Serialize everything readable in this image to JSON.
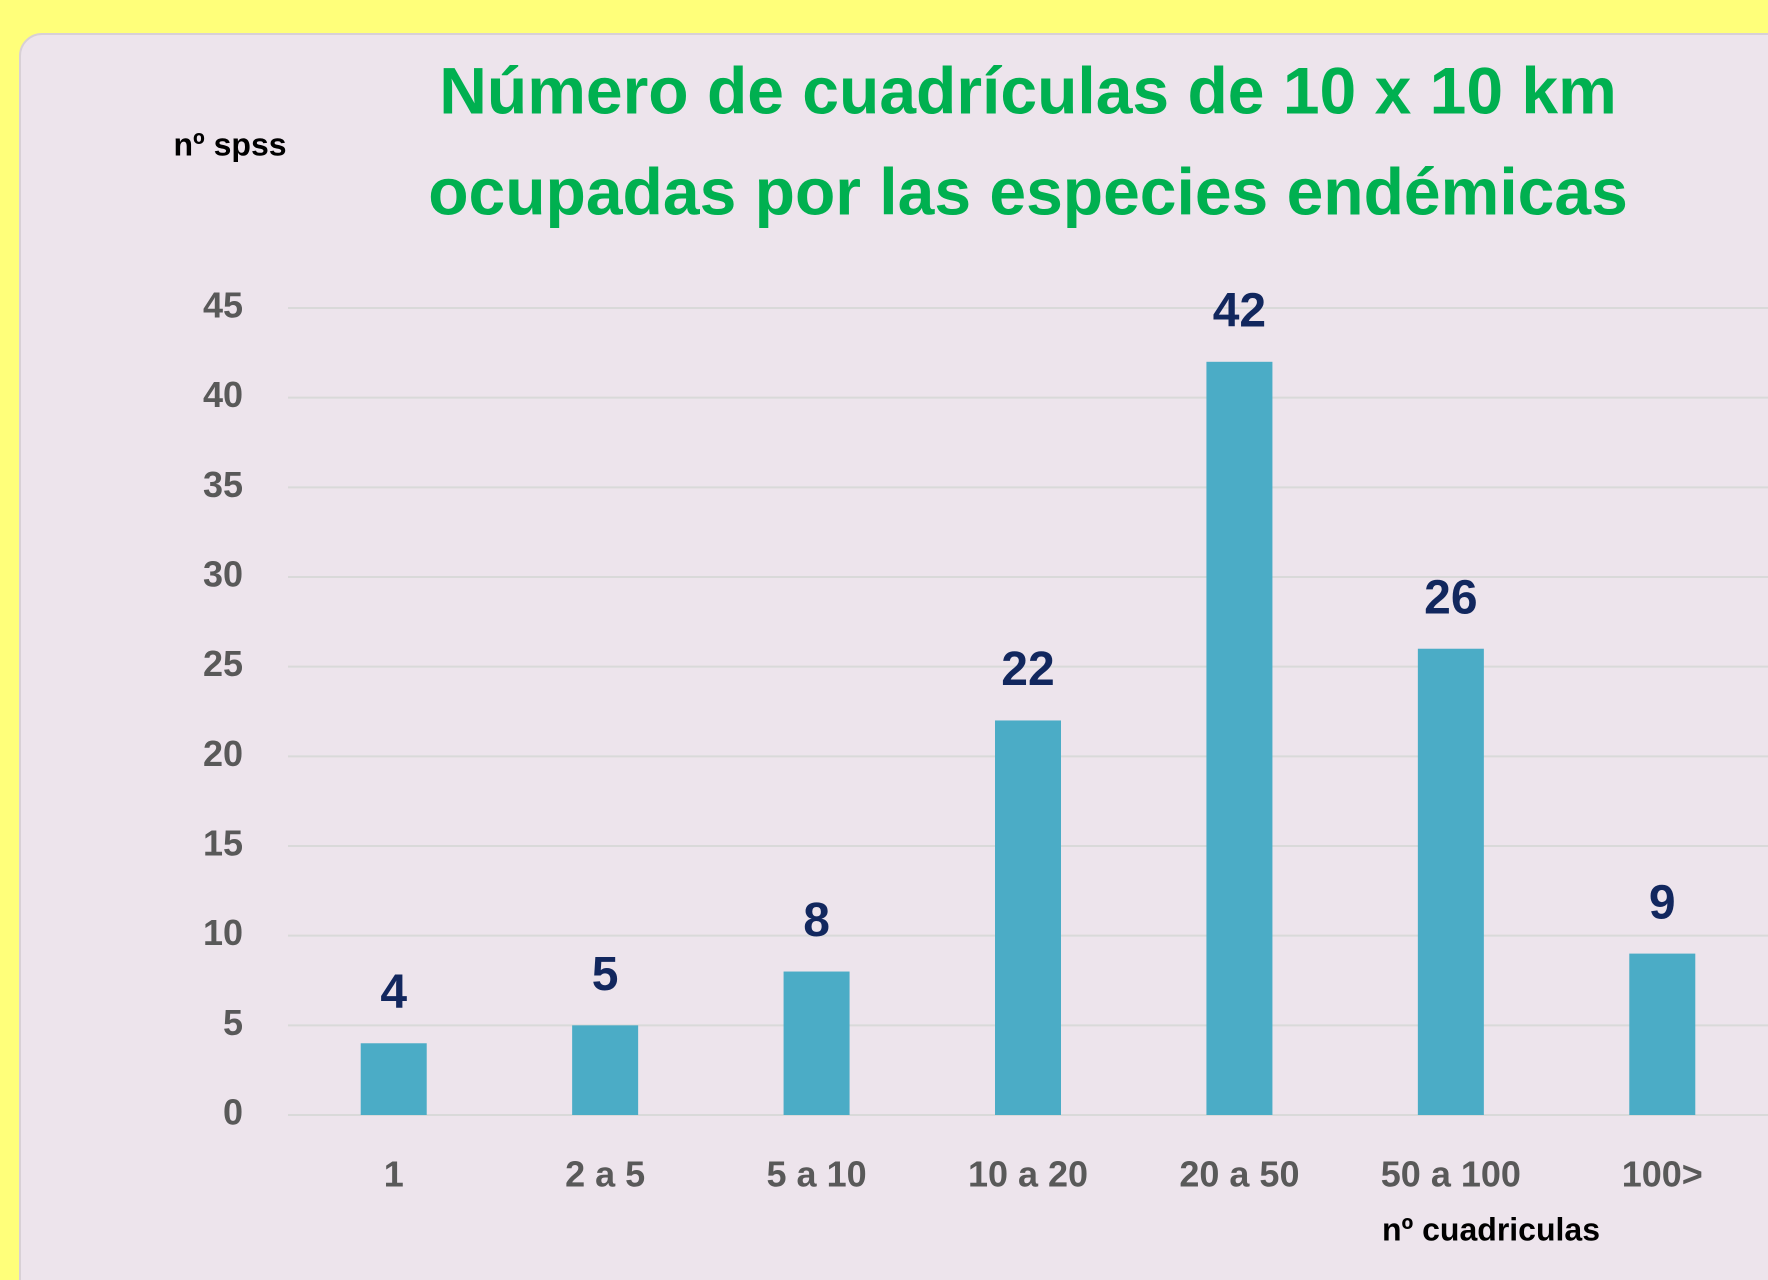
{
  "chart_data": {
    "type": "bar",
    "title": [
      "Número de cuadrículas de 10 x 10 km",
      "ocupadas por las especies endémicas"
    ],
    "y_axis_label": "nº spss",
    "x_axis_label": "nº cuadriculas",
    "categories": [
      "1",
      "2 a 5",
      "5 a 10",
      "10 a 20",
      "20 a 50",
      "50 a 100",
      "100>"
    ],
    "values": [
      4,
      5,
      8,
      22,
      42,
      26,
      9
    ],
    "color": "#4bacc6",
    "ylim": [
      0,
      45
    ],
    "yticks": [
      0,
      5,
      10,
      15,
      20,
      25,
      30,
      35,
      40,
      45
    ],
    "grid": true
  }
}
